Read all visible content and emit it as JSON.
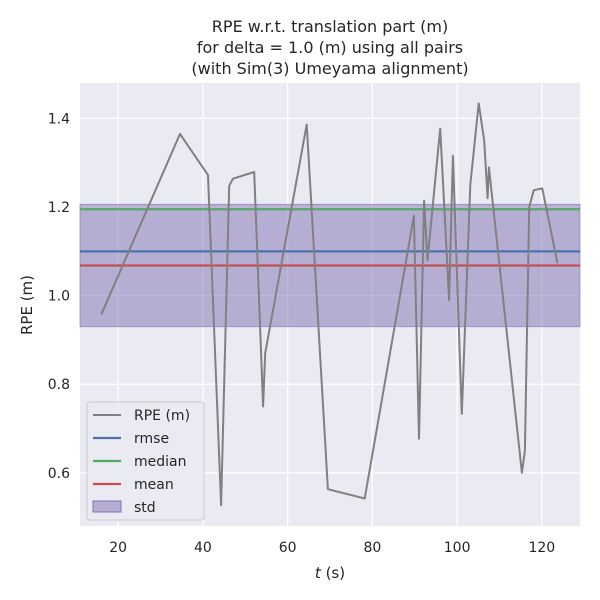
{
  "chart_data": {
    "type": "line",
    "title_lines": [
      "RPE w.r.t. translation part (m)",
      "for delta = 1.0 (m) using all pairs",
      "(with Sim(3) Umeyama alignment)"
    ],
    "xlabel_var": "t",
    "xlabel_unit": " (s)",
    "ylabel": "RPE (m)",
    "xlim": [
      11,
      129
    ],
    "ylim": [
      0.48,
      1.48
    ],
    "xticks": [
      20,
      40,
      60,
      80,
      100,
      120
    ],
    "yticks": [
      0.6,
      0.8,
      1.0,
      1.2,
      1.4
    ],
    "xtick_labels": [
      "20",
      "40",
      "60",
      "80",
      "100",
      "120"
    ],
    "ytick_labels": [
      "0.6",
      "0.8",
      "1.0",
      "1.2",
      "1.4"
    ],
    "grid": true,
    "legend_position": "lower-left",
    "series": [
      {
        "name": "RPE (m)",
        "color": "#808080",
        "x": [
          16.0,
          34.6,
          41.2,
          44.3,
          46.2,
          47.1,
          52.1,
          54.2,
          54.7,
          64.5,
          69.5,
          78.2,
          89.8,
          91.0,
          92.2,
          93.0,
          96.0,
          98.1,
          99.0,
          101.1,
          103.1,
          105.1,
          106.4,
          107.2,
          107.5,
          115.3,
          116.0,
          117.0,
          118.1,
          120.1,
          123.7
        ],
        "y": [
          0.957,
          1.365,
          1.272,
          0.527,
          1.248,
          1.264,
          1.279,
          0.75,
          0.87,
          1.386,
          0.563,
          0.542,
          1.18,
          0.677,
          1.214,
          1.08,
          1.377,
          0.99,
          1.316,
          0.733,
          1.25,
          1.434,
          1.35,
          1.22,
          1.29,
          0.6,
          0.65,
          1.2,
          1.238,
          1.242,
          1.073
        ]
      }
    ],
    "stats": [
      {
        "name": "rmse",
        "value": 1.1,
        "color": "#4c72b0"
      },
      {
        "name": "median",
        "value": 1.195,
        "color": "#55a868"
      },
      {
        "name": "mean",
        "value": 1.068,
        "color": "#c44e52"
      }
    ],
    "std": {
      "name": "std",
      "lower": 0.93,
      "upper": 1.206,
      "color": "#8172b2"
    },
    "colors": {
      "axes_bg": "#eaeaf2",
      "grid": "#ffffff",
      "text": "#262626"
    }
  }
}
